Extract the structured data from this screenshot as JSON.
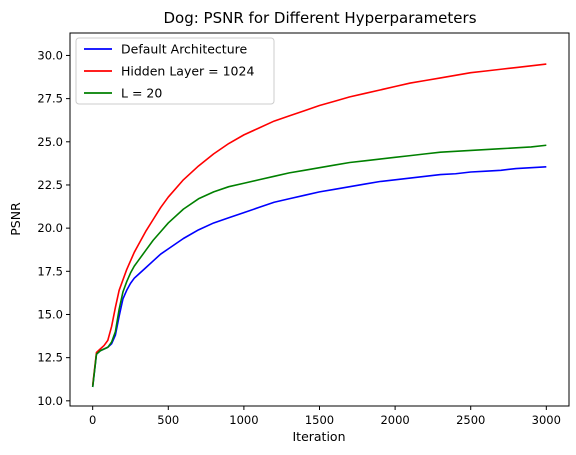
{
  "chart_data": {
    "type": "line",
    "title": "Dog: PSNR for Different Hyperparameters",
    "xlabel": "Iteration",
    "ylabel": "PSNR",
    "xlim": [
      -150,
      3150
    ],
    "ylim": [
      9.7,
      31.3
    ],
    "x_ticks": [
      0,
      500,
      1000,
      1500,
      2000,
      2500,
      3000
    ],
    "x_tick_labels": [
      "0",
      "500",
      "1000",
      "1500",
      "2000",
      "2500",
      "3000"
    ],
    "y_ticks": [
      10.0,
      12.5,
      15.0,
      17.5,
      20.0,
      22.5,
      25.0,
      27.5,
      30.0
    ],
    "y_tick_labels": [
      "10.0",
      "12.5",
      "15.0",
      "17.5",
      "20.0",
      "22.5",
      "25.0",
      "27.5",
      "30.0"
    ],
    "grid": false,
    "legend": "top-left",
    "series": [
      {
        "name": "Default Architecture",
        "color": "#0000ff",
        "x": [
          0,
          25,
          50,
          75,
          100,
          125,
          150,
          175,
          200,
          225,
          250,
          275,
          300,
          350,
          400,
          450,
          500,
          600,
          700,
          800,
          900,
          1000,
          1100,
          1200,
          1300,
          1400,
          1500,
          1600,
          1700,
          1800,
          1900,
          2000,
          2100,
          2200,
          2300,
          2400,
          2500,
          2600,
          2700,
          2800,
          2900,
          3000
        ],
        "y": [
          10.8,
          12.7,
          12.9,
          13.0,
          13.1,
          13.3,
          13.8,
          14.9,
          15.9,
          16.4,
          16.8,
          17.1,
          17.3,
          17.7,
          18.1,
          18.5,
          18.8,
          19.4,
          19.9,
          20.3,
          20.6,
          20.9,
          21.2,
          21.5,
          21.7,
          21.9,
          22.1,
          22.25,
          22.4,
          22.55,
          22.7,
          22.8,
          22.9,
          23.0,
          23.1,
          23.15,
          23.25,
          23.3,
          23.35,
          23.45,
          23.5,
          23.55
        ]
      },
      {
        "name": "Hidden Layer = 1024",
        "color": "#ff0000",
        "x": [
          0,
          25,
          50,
          75,
          100,
          125,
          150,
          175,
          200,
          225,
          250,
          275,
          300,
          350,
          400,
          450,
          500,
          600,
          700,
          800,
          900,
          1000,
          1100,
          1200,
          1300,
          1400,
          1500,
          1600,
          1700,
          1800,
          1900,
          2000,
          2100,
          2200,
          2300,
          2400,
          2500,
          2600,
          2700,
          2800,
          2900,
          3000
        ],
        "y": [
          10.9,
          12.8,
          13.0,
          13.2,
          13.5,
          14.3,
          15.4,
          16.4,
          17.0,
          17.6,
          18.1,
          18.6,
          19.0,
          19.8,
          20.5,
          21.2,
          21.8,
          22.8,
          23.6,
          24.3,
          24.9,
          25.4,
          25.8,
          26.2,
          26.5,
          26.8,
          27.1,
          27.35,
          27.6,
          27.8,
          28.0,
          28.2,
          28.4,
          28.55,
          28.7,
          28.85,
          29.0,
          29.1,
          29.2,
          29.3,
          29.4,
          29.5
        ]
      },
      {
        "name": "L = 20",
        "color": "#008000",
        "x": [
          0,
          25,
          50,
          75,
          100,
          125,
          150,
          175,
          200,
          225,
          250,
          275,
          300,
          350,
          400,
          450,
          500,
          600,
          700,
          800,
          900,
          1000,
          1100,
          1200,
          1300,
          1400,
          1500,
          1600,
          1700,
          1800,
          1900,
          2000,
          2100,
          2200,
          2300,
          2400,
          2500,
          2600,
          2700,
          2800,
          2900,
          3000
        ],
        "y": [
          10.8,
          12.7,
          12.9,
          13.0,
          13.1,
          13.4,
          14.0,
          15.3,
          16.3,
          16.9,
          17.4,
          17.8,
          18.1,
          18.7,
          19.3,
          19.8,
          20.3,
          21.1,
          21.7,
          22.1,
          22.4,
          22.6,
          22.8,
          23.0,
          23.2,
          23.35,
          23.5,
          23.65,
          23.8,
          23.9,
          24.0,
          24.1,
          24.2,
          24.3,
          24.4,
          24.45,
          24.5,
          24.55,
          24.6,
          24.65,
          24.7,
          24.8
        ]
      }
    ]
  }
}
